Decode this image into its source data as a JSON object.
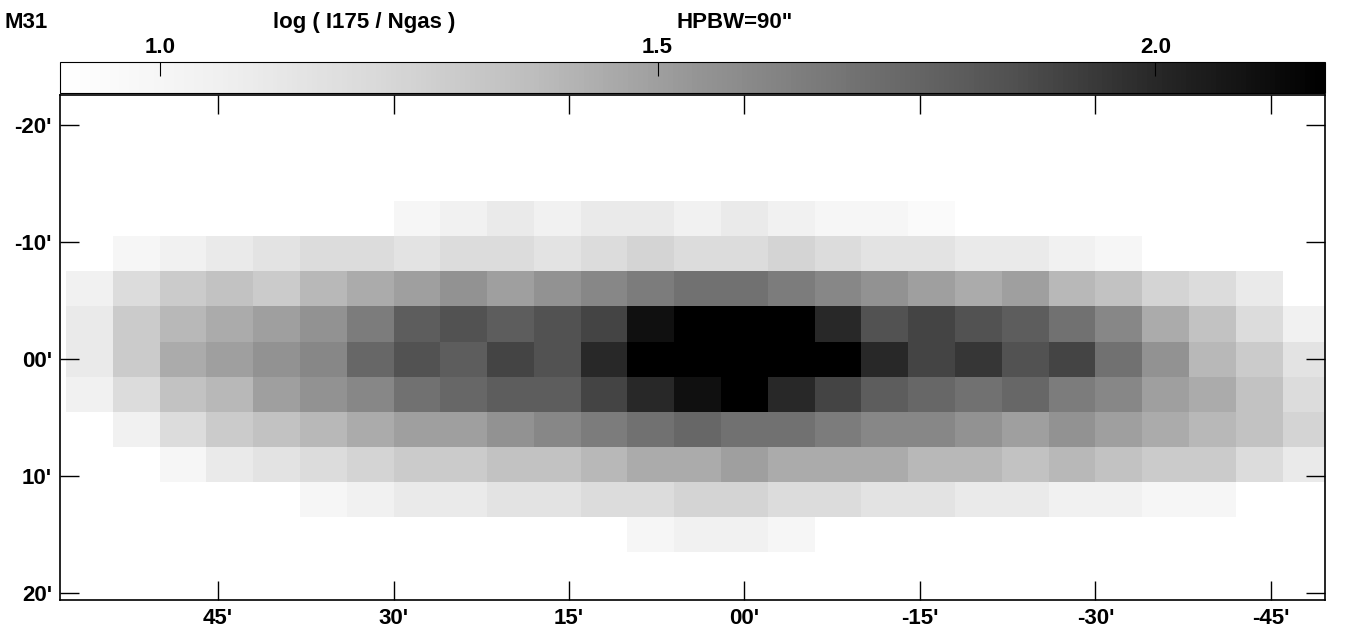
{
  "chart_data": {
    "type": "heatmap",
    "title": "M31",
    "subtitle": "log ( I175 / Ngas )",
    "annotations": [
      "HPBW=90\""
    ],
    "color": "Greys",
    "xlim": [
      58.5,
      -49.6
    ],
    "ylim": [
      20.6,
      -22.6
    ],
    "xticks": [
      {
        "value": 45,
        "label": "45'"
      },
      {
        "value": 30,
        "label": "30'"
      },
      {
        "value": 15,
        "label": "15'"
      },
      {
        "value": 0,
        "label": "00'"
      },
      {
        "value": -15,
        "label": "-15'"
      },
      {
        "value": -30,
        "label": "-30'"
      },
      {
        "value": -45,
        "label": "-45'"
      }
    ],
    "yticks": [
      {
        "value": -20,
        "label": "-20'"
      },
      {
        "value": -10,
        "label": "-10'"
      },
      {
        "value": 0,
        "label": "00'"
      },
      {
        "value": 10,
        "label": "10'"
      },
      {
        "value": 20,
        "label": "20'"
      }
    ],
    "colorbar": {
      "range": [
        0.9,
        2.17
      ],
      "ticks": [
        1.0,
        1.5,
        2.0
      ]
    },
    "x": [
      56,
      52,
      48,
      44,
      40,
      36,
      32,
      28,
      24,
      20,
      16,
      12,
      8,
      4,
      0,
      -4,
      -8,
      -12,
      -16,
      -20,
      -24,
      -28,
      -32,
      -36,
      -40,
      -44,
      -48
    ],
    "y": [
      -18,
      -15,
      -12,
      -9,
      -6,
      -3,
      0,
      3,
      6,
      9,
      12,
      15,
      18
    ],
    "values": [
      [
        null,
        null,
        null,
        null,
        null,
        null,
        null,
        null,
        null,
        null,
        null,
        null,
        null,
        null,
        null,
        null,
        null,
        null,
        null,
        null,
        null,
        null,
        null,
        null,
        null,
        null,
        null
      ],
      [
        null,
        null,
        null,
        null,
        null,
        null,
        null,
        null,
        null,
        null,
        null,
        null,
        null,
        null,
        null,
        null,
        null,
        null,
        null,
        null,
        null,
        null,
        null,
        null,
        null,
        null,
        null
      ],
      [
        null,
        null,
        null,
        null,
        null,
        null,
        null,
        1.0,
        1.05,
        1.1,
        1.05,
        1.1,
        1.1,
        1.05,
        1.1,
        1.05,
        1.0,
        1.0,
        0.95,
        null,
        null,
        null,
        null,
        null,
        null,
        null,
        null
      ],
      [
        null,
        1.0,
        1.05,
        1.1,
        1.15,
        1.2,
        1.2,
        1.15,
        1.2,
        1.2,
        1.15,
        1.2,
        1.25,
        1.2,
        1.2,
        1.25,
        1.2,
        1.15,
        1.15,
        1.1,
        1.1,
        1.05,
        1.0,
        null,
        null,
        null,
        null
      ],
      [
        1.05,
        1.2,
        1.3,
        1.35,
        1.3,
        1.4,
        1.45,
        1.5,
        1.55,
        1.5,
        1.55,
        1.6,
        1.65,
        1.7,
        1.7,
        1.65,
        1.6,
        1.55,
        1.5,
        1.45,
        1.5,
        1.4,
        1.35,
        1.25,
        1.2,
        1.1,
        null
      ],
      [
        1.1,
        1.3,
        1.4,
        1.45,
        1.5,
        1.55,
        1.65,
        1.8,
        1.85,
        1.8,
        1.85,
        1.9,
        2.1,
        2.3,
        2.3,
        2.25,
        2.0,
        1.85,
        1.9,
        1.85,
        1.8,
        1.7,
        1.6,
        1.45,
        1.35,
        1.2,
        1.05
      ],
      [
        1.1,
        1.3,
        1.45,
        1.5,
        1.55,
        1.6,
        1.75,
        1.85,
        1.8,
        1.9,
        1.85,
        2.0,
        2.3,
        2.4,
        2.4,
        2.35,
        2.3,
        2.0,
        1.9,
        1.95,
        1.85,
        1.9,
        1.7,
        1.55,
        1.4,
        1.3,
        1.15
      ],
      [
        1.05,
        1.2,
        1.35,
        1.4,
        1.5,
        1.55,
        1.6,
        1.7,
        1.75,
        1.8,
        1.8,
        1.9,
        2.0,
        2.1,
        2.2,
        2.0,
        1.9,
        1.8,
        1.75,
        1.7,
        1.75,
        1.65,
        1.6,
        1.5,
        1.45,
        1.35,
        1.2
      ],
      [
        null,
        1.05,
        1.2,
        1.3,
        1.35,
        1.4,
        1.45,
        1.5,
        1.5,
        1.55,
        1.6,
        1.65,
        1.7,
        1.75,
        1.7,
        1.7,
        1.65,
        1.6,
        1.6,
        1.55,
        1.5,
        1.55,
        1.5,
        1.45,
        1.4,
        1.35,
        1.25
      ],
      [
        null,
        null,
        1.0,
        1.1,
        1.15,
        1.2,
        1.25,
        1.3,
        1.3,
        1.35,
        1.35,
        1.4,
        1.45,
        1.45,
        1.5,
        1.45,
        1.45,
        1.45,
        1.4,
        1.4,
        1.35,
        1.4,
        1.35,
        1.3,
        1.3,
        1.2,
        1.1
      ],
      [
        null,
        null,
        null,
        null,
        null,
        1.0,
        1.05,
        1.1,
        1.1,
        1.15,
        1.15,
        1.2,
        1.2,
        1.25,
        1.25,
        1.2,
        1.2,
        1.15,
        1.15,
        1.1,
        1.1,
        1.05,
        1.05,
        1.0,
        1.0,
        null,
        null
      ],
      [
        null,
        null,
        null,
        null,
        null,
        null,
        null,
        null,
        null,
        null,
        null,
        null,
        1.0,
        1.05,
        1.05,
        1.0,
        null,
        null,
        null,
        null,
        null,
        null,
        null,
        null,
        null,
        null,
        null
      ],
      [
        null,
        null,
        null,
        null,
        null,
        null,
        null,
        null,
        null,
        null,
        null,
        null,
        null,
        null,
        null,
        null,
        null,
        null,
        null,
        null,
        null,
        null,
        null,
        null,
        null,
        null,
        null
      ]
    ]
  }
}
